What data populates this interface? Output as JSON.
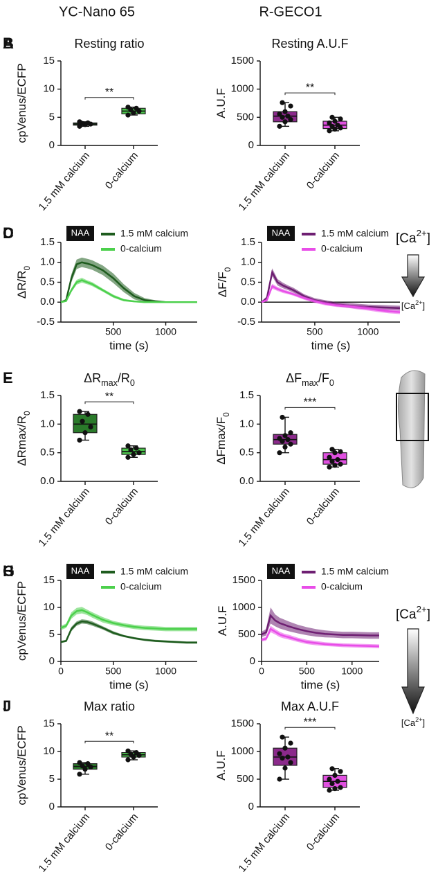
{
  "columns": [
    "YC-Nano 65",
    "R-GECO1"
  ],
  "indicators": [
    {
      "high": [
        "[Ca",
        "2+",
        "]"
      ],
      "low": [
        "[Ca",
        "2+",
        "]"
      ]
    },
    {
      "high": [
        "[Ca",
        "2+",
        "]"
      ],
      "low": [
        "[Ca",
        "2+",
        "]"
      ]
    }
  ],
  "chart_data": [
    {
      "type": "box",
      "panel": "A",
      "title": [
        "Resting ratio"
      ],
      "ylabel": [
        "cpVenus/ECFP"
      ],
      "categories": [
        "1.5 mM calcium",
        "0-calcium"
      ],
      "colors": [
        "#2a7a2a",
        "#4cc44c"
      ],
      "boxes": [
        {
          "min": 3.4,
          "q1": 3.6,
          "median": 3.8,
          "q3": 4.0,
          "max": 4.2,
          "points": [
            3.4,
            3.7,
            3.8,
            3.9,
            4.0,
            4.2
          ]
        },
        {
          "min": 5.4,
          "q1": 5.6,
          "median": 6.1,
          "q3": 6.6,
          "max": 6.8,
          "points": [
            5.4,
            5.8,
            6.1,
            6.3,
            6.6,
            6.8
          ]
        }
      ],
      "ylim": [
        0,
        15
      ],
      "yticks": [
        0,
        5,
        10,
        15
      ],
      "significance": "**"
    },
    {
      "type": "box",
      "panel": "B",
      "title": [
        "Resting  A.U.F"
      ],
      "ylabel": [
        "A.U.F"
      ],
      "categories": [
        "1.5 mM calcium",
        "0-calcium"
      ],
      "colors": [
        "#8b2a8b",
        "#e050e0"
      ],
      "boxes": [
        {
          "min": 340,
          "q1": 420,
          "median": 520,
          "q3": 600,
          "max": 760,
          "points": [
            340,
            420,
            460,
            500,
            520,
            560,
            600,
            700,
            760
          ]
        },
        {
          "min": 260,
          "q1": 300,
          "median": 360,
          "q3": 430,
          "max": 500,
          "points": [
            260,
            290,
            310,
            340,
            360,
            400,
            430,
            470,
            500
          ]
        }
      ],
      "ylim": [
        0,
        1500
      ],
      "yticks": [
        0,
        500,
        1000,
        1500
      ],
      "significance": "**"
    },
    {
      "type": "line",
      "panel": "C",
      "label": "NAA",
      "ylabel": [
        "ΔR/R",
        "0"
      ],
      "xlabel": "time (s)",
      "x": [
        0,
        50,
        100,
        150,
        200,
        250,
        300,
        400,
        500,
        600,
        700,
        800,
        900,
        1000,
        1100,
        1200,
        1300
      ],
      "series": [
        {
          "name": "1.5 mM calcium",
          "color": "#1e5c1e",
          "values": [
            0,
            0.05,
            0.6,
            0.95,
            1.0,
            0.97,
            0.93,
            0.8,
            0.6,
            0.35,
            0.15,
            0.05,
            0.02,
            0,
            0,
            0,
            0
          ],
          "errors": [
            0.02,
            0.03,
            0.1,
            0.12,
            0.12,
            0.12,
            0.12,
            0.12,
            0.12,
            0.1,
            0.08,
            0.05,
            0.03,
            0.02,
            0.02,
            0.02,
            0.02
          ]
        },
        {
          "name": "0-calcium",
          "color": "#4cd04c",
          "values": [
            0,
            0.03,
            0.3,
            0.5,
            0.55,
            0.5,
            0.45,
            0.3,
            0.15,
            0.05,
            0.02,
            0,
            0,
            0,
            0,
            0,
            0
          ],
          "errors": [
            0.02,
            0.02,
            0.05,
            0.06,
            0.06,
            0.05,
            0.05,
            0.04,
            0.04,
            0.03,
            0.02,
            0.02,
            0.02,
            0.02,
            0.02,
            0.02,
            0.02
          ]
        }
      ],
      "xlim": [
        0,
        1300
      ],
      "xticks": [
        500,
        1000
      ],
      "ylim": [
        -0.5,
        1.5
      ],
      "yticks": [
        -0.5,
        {
          "value": 0,
          "label": "0.0"
        },
        0.5,
        {
          "value": 1,
          "label": "1.0"
        },
        1.5
      ],
      "zero_line": false
    },
    {
      "type": "line",
      "panel": "D",
      "label": "NAA",
      "ylabel": [
        "ΔF/F",
        "0"
      ],
      "xlabel": "time (s)",
      "x": [
        0,
        50,
        100,
        150,
        200,
        250,
        300,
        400,
        500,
        600,
        700,
        800,
        900,
        1000,
        1100,
        1200,
        1300
      ],
      "series": [
        {
          "name": "1.5 mM calcium",
          "color": "#6e1f72",
          "values": [
            0,
            0.1,
            0.75,
            0.5,
            0.42,
            0.36,
            0.3,
            0.15,
            0.05,
            0,
            -0.05,
            -0.08,
            -0.1,
            -0.12,
            -0.13,
            -0.14,
            -0.15
          ],
          "errors": [
            0.02,
            0.05,
            0.1,
            0.08,
            0.07,
            0.06,
            0.06,
            0.05,
            0.05,
            0.05,
            0.05,
            0.06,
            0.06,
            0.06,
            0.06,
            0.06,
            0.06
          ]
        },
        {
          "name": "0-calcium",
          "color": "#e84de8",
          "values": [
            0,
            0.05,
            0.4,
            0.33,
            0.28,
            0.24,
            0.2,
            0.1,
            0.02,
            -0.04,
            -0.08,
            -0.1,
            -0.13,
            -0.16,
            -0.2,
            -0.23,
            -0.25
          ],
          "errors": [
            0.02,
            0.03,
            0.06,
            0.05,
            0.05,
            0.04,
            0.04,
            0.04,
            0.04,
            0.04,
            0.04,
            0.04,
            0.05,
            0.05,
            0.05,
            0.05,
            0.05
          ]
        }
      ],
      "xlim": [
        0,
        1300
      ],
      "xticks": [
        500,
        1000
      ],
      "ylim": [
        -0.5,
        1.5
      ],
      "yticks": [
        -0.5,
        {
          "value": 0,
          "label": "0.0"
        },
        0.5,
        {
          "value": 1,
          "label": "1.0"
        },
        1.5
      ],
      "zero_line": true
    },
    {
      "type": "box",
      "panel": "E",
      "title": [
        "ΔR",
        "max",
        "/R",
        "0"
      ],
      "ylabel": [
        "ΔRmax/R",
        "0"
      ],
      "categories": [
        "1.5 mM calcium",
        "0-calcium"
      ],
      "colors": [
        "#2a7a2a",
        "#4cc44c"
      ],
      "boxes": [
        {
          "min": 0.72,
          "q1": 0.85,
          "median": 1.0,
          "q3": 1.17,
          "max": 1.22,
          "points": [
            0.72,
            0.85,
            0.95,
            1.05,
            1.17,
            1.22
          ]
        },
        {
          "min": 0.42,
          "q1": 0.47,
          "median": 0.52,
          "q3": 0.58,
          "max": 0.62,
          "points": [
            0.42,
            0.47,
            0.5,
            0.55,
            0.58,
            0.62
          ]
        }
      ],
      "ylim": [
        0,
        1.5
      ],
      "yticks": [
        {
          "value": 0,
          "label": "0.0"
        },
        0.5,
        {
          "value": 1,
          "label": "1.0"
        },
        1.5
      ],
      "significance": "**"
    },
    {
      "type": "box",
      "panel": "F",
      "title": [
        "ΔF",
        "max",
        "/F",
        "0"
      ],
      "ylabel": [
        "ΔFmax/F",
        "0"
      ],
      "categories": [
        "1.5 mM calcium",
        "0-calcium"
      ],
      "colors": [
        "#8b2a8b",
        "#e050e0"
      ],
      "boxes": [
        {
          "min": 0.5,
          "q1": 0.65,
          "median": 0.73,
          "q3": 0.82,
          "max": 1.12,
          "points": [
            0.5,
            0.6,
            0.65,
            0.7,
            0.73,
            0.75,
            0.8,
            0.85,
            1.12
          ]
        },
        {
          "min": 0.25,
          "q1": 0.3,
          "median": 0.38,
          "q3": 0.5,
          "max": 0.56,
          "points": [
            0.25,
            0.28,
            0.3,
            0.35,
            0.38,
            0.42,
            0.5,
            0.52,
            0.56
          ]
        }
      ],
      "ylim": [
        0,
        1.5
      ],
      "yticks": [
        {
          "value": 0,
          "label": "0.0"
        },
        0.5,
        {
          "value": 1,
          "label": "1.0"
        },
        1.5
      ],
      "significance": "***"
    },
    {
      "type": "line",
      "panel": "G",
      "label": "NAA",
      "ylabel": [
        "cpVenus/ECFP"
      ],
      "xlabel": "time (s)",
      "x": [
        0,
        50,
        100,
        150,
        200,
        250,
        300,
        400,
        500,
        600,
        700,
        800,
        900,
        1000,
        1100,
        1200,
        1300
      ],
      "series": [
        {
          "name": "1.5 mM calcium",
          "color": "#1e5c1e",
          "values": [
            3.6,
            3.8,
            6,
            7,
            7.4,
            7.3,
            7,
            6.2,
            5.3,
            4.7,
            4.3,
            4,
            3.8,
            3.7,
            3.6,
            3.5,
            3.5
          ],
          "errors": [
            0.2,
            0.2,
            0.4,
            0.4,
            0.4,
            0.4,
            0.4,
            0.3,
            0.3,
            0.2,
            0.2,
            0.2,
            0.2,
            0.2,
            0.2,
            0.2,
            0.2
          ]
        },
        {
          "name": "0-calcium",
          "color": "#4cd04c",
          "values": [
            6.2,
            6.6,
            8.5,
            9.3,
            9.5,
            9.1,
            8.6,
            7.7,
            7.1,
            6.7,
            6.4,
            6.2,
            6.1,
            6,
            6,
            6,
            6
          ],
          "errors": [
            0.4,
            0.4,
            0.6,
            0.6,
            0.6,
            0.5,
            0.5,
            0.5,
            0.4,
            0.4,
            0.4,
            0.4,
            0.4,
            0.4,
            0.4,
            0.4,
            0.4
          ]
        }
      ],
      "xlim": [
        0,
        1300
      ],
      "xticks": [
        0,
        500,
        1000
      ],
      "ylim": [
        0,
        15
      ],
      "yticks": [
        0,
        5,
        10,
        15
      ],
      "zero_line": false
    },
    {
      "type": "line",
      "panel": "H",
      "label": "NAA",
      "ylabel": [
        "A.U.F"
      ],
      "xlabel": "time (s)",
      "x": [
        0,
        50,
        100,
        150,
        200,
        250,
        300,
        400,
        500,
        600,
        700,
        800,
        900,
        1000,
        1100,
        1200,
        1300
      ],
      "series": [
        {
          "name": "1.5 mM calcium",
          "color": "#6e1f72",
          "values": [
            500,
            540,
            850,
            760,
            710,
            680,
            650,
            600,
            560,
            530,
            510,
            500,
            490,
            490,
            485,
            480,
            480
          ],
          "errors": [
            50,
            60,
            150,
            110,
            100,
            95,
            90,
            80,
            75,
            70,
            65,
            60,
            60,
            60,
            60,
            60,
            60
          ]
        },
        {
          "name": "0-calcium",
          "color": "#e84de8",
          "values": [
            400,
            420,
            600,
            550,
            500,
            470,
            450,
            400,
            360,
            340,
            320,
            310,
            300,
            295,
            290,
            285,
            280
          ],
          "errors": [
            30,
            35,
            60,
            50,
            50,
            45,
            45,
            40,
            40,
            40,
            35,
            35,
            35,
            35,
            35,
            35,
            35
          ]
        }
      ],
      "xlim": [
        0,
        1300
      ],
      "xticks": [
        0,
        500,
        1000
      ],
      "ylim": [
        0,
        1500
      ],
      "yticks": [
        0,
        500,
        1000,
        1500
      ],
      "zero_line": false
    },
    {
      "type": "box",
      "panel": "I",
      "title": [
        "Max ratio"
      ],
      "ylabel": [
        "cpVenus/ECFP"
      ],
      "categories": [
        "1.5 mM calcium",
        "0-calcium"
      ],
      "colors": [
        "#2a7a2a",
        "#4cc44c"
      ],
      "boxes": [
        {
          "min": 5.9,
          "q1": 6.8,
          "median": 7.3,
          "q3": 7.8,
          "max": 8.0,
          "points": [
            5.9,
            6.8,
            7.2,
            7.4,
            7.8,
            8.0
          ]
        },
        {
          "min": 8.5,
          "q1": 9.0,
          "median": 9.4,
          "q3": 9.8,
          "max": 10.1,
          "points": [
            8.5,
            9.0,
            9.3,
            9.5,
            9.8,
            10.1
          ]
        }
      ],
      "ylim": [
        0,
        15
      ],
      "yticks": [
        0,
        5,
        10,
        15
      ],
      "significance": "**"
    },
    {
      "type": "box",
      "panel": "J",
      "title": [
        "Max  A.U.F"
      ],
      "ylabel": [
        "A.U.F"
      ],
      "categories": [
        "1.5 mM calcium",
        "0-calcium"
      ],
      "colors": [
        "#8b2a8b",
        "#e050e0"
      ],
      "boxes": [
        {
          "min": 500,
          "q1": 750,
          "median": 900,
          "q3": 1060,
          "max": 1260,
          "points": [
            500,
            700,
            800,
            880,
            900,
            960,
            1060,
            1150,
            1260
          ]
        },
        {
          "min": 300,
          "q1": 350,
          "median": 460,
          "q3": 570,
          "max": 690,
          "points": [
            300,
            330,
            350,
            420,
            460,
            500,
            570,
            640,
            690
          ]
        }
      ],
      "ylim": [
        0,
        1500
      ],
      "yticks": [
        0,
        500,
        1000,
        1500
      ],
      "significance": "***"
    }
  ]
}
